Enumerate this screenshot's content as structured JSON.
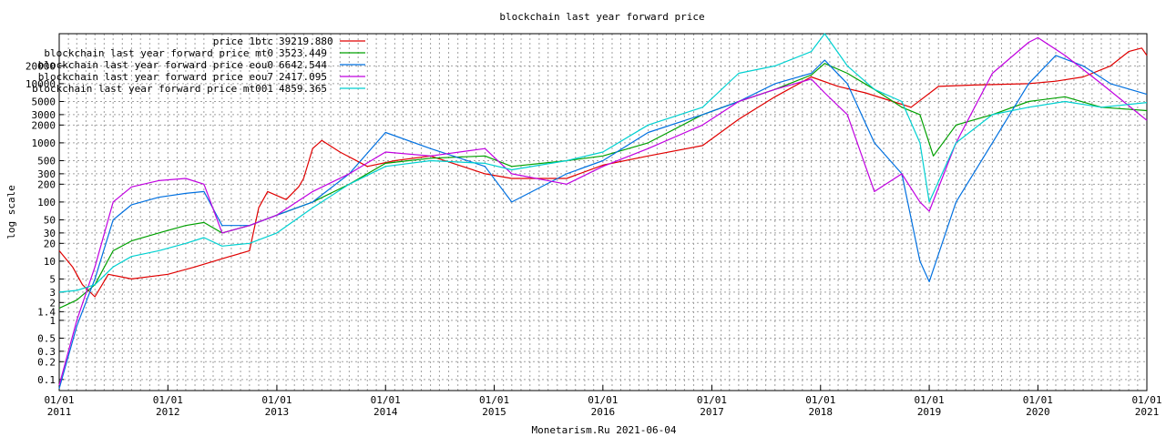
{
  "chart_data": {
    "type": "line",
    "title": "blockchain last year forward price",
    "ylabel": "log scale",
    "xlabel": "",
    "footer": "Monetarism.Ru 2021-06-04",
    "y_scale": "log",
    "grid": true,
    "legend_placement": "top-left",
    "xlim": [
      "2011-01-01",
      "2021-01-01"
    ],
    "ylim": [
      0.065,
      70000
    ],
    "y_ticks": [
      {
        "v": 0.1,
        "label": "0.1"
      },
      {
        "v": 0.2,
        "label": "0.2"
      },
      {
        "v": 0.3,
        "label": "0.3"
      },
      {
        "v": 0.5,
        "label": "0.5"
      },
      {
        "v": 1,
        "label": "1"
      },
      {
        "v": 1.4,
        "label": "1.4"
      },
      {
        "v": 2,
        "label": "2"
      },
      {
        "v": 3,
        "label": "3"
      },
      {
        "v": 5,
        "label": "5"
      },
      {
        "v": 10,
        "label": "10"
      },
      {
        "v": 20,
        "label": "20"
      },
      {
        "v": 30,
        "label": "30"
      },
      {
        "v": 50,
        "label": "50"
      },
      {
        "v": 100,
        "label": "100"
      },
      {
        "v": 200,
        "label": "200"
      },
      {
        "v": 300,
        "label": "300"
      },
      {
        "v": 500,
        "label": "500"
      },
      {
        "v": 1000,
        "label": "1000"
      },
      {
        "v": 2000,
        "label": "2000"
      },
      {
        "v": 3000,
        "label": "3000"
      },
      {
        "v": 5000,
        "label": "5000"
      },
      {
        "v": 10000,
        "label": "10000"
      },
      {
        "v": 20000,
        "label": "20000"
      }
    ],
    "x_ticks": [
      {
        "date": "2011-01-01",
        "line1": "01/01",
        "line2": "2011"
      },
      {
        "date": "2012-01-01",
        "line1": "01/01",
        "line2": "2012"
      },
      {
        "date": "2013-01-01",
        "line1": "01/01",
        "line2": "2013"
      },
      {
        "date": "2014-01-01",
        "line1": "01/01",
        "line2": "2014"
      },
      {
        "date": "2015-01-01",
        "line1": "01/01",
        "line2": "2015"
      },
      {
        "date": "2016-01-01",
        "line1": "01/01",
        "line2": "2016"
      },
      {
        "date": "2017-01-01",
        "line1": "01/01",
        "line2": "2017"
      },
      {
        "date": "2018-01-01",
        "line1": "01/01",
        "line2": "2018"
      },
      {
        "date": "2019-01-01",
        "line1": "01/01",
        "line2": "2019"
      },
      {
        "date": "2020-01-01",
        "line1": "01/01",
        "line2": "2020"
      },
      {
        "date": "2021-01-01",
        "line1": "01/01",
        "line2": "2021"
      }
    ],
    "series": [
      {
        "name": "price 1btc",
        "legend_value": "39219.880",
        "color": "#e00000",
        "points": [
          [
            "2011-01-01",
            15
          ],
          [
            "2011-02-15",
            8
          ],
          [
            "2011-03-20",
            4
          ],
          [
            "2011-05-01",
            2.5
          ],
          [
            "2011-06-15",
            6
          ],
          [
            "2011-09-01",
            5
          ],
          [
            "2012-01-01",
            6
          ],
          [
            "2012-04-01",
            8
          ],
          [
            "2012-07-01",
            11
          ],
          [
            "2012-10-01",
            15
          ],
          [
            "2012-11-01",
            80
          ],
          [
            "2012-12-01",
            150
          ],
          [
            "2013-02-01",
            110
          ],
          [
            "2013-03-15",
            180
          ],
          [
            "2013-04-01",
            250
          ],
          [
            "2013-05-01",
            800
          ],
          [
            "2013-06-01",
            1100
          ],
          [
            "2013-08-01",
            700
          ],
          [
            "2013-11-01",
            400
          ],
          [
            "2014-02-01",
            500
          ],
          [
            "2014-06-01",
            600
          ],
          [
            "2014-12-01",
            300
          ],
          [
            "2015-03-01",
            250
          ],
          [
            "2015-09-01",
            250
          ],
          [
            "2016-01-01",
            420
          ],
          [
            "2016-06-01",
            600
          ],
          [
            "2016-12-01",
            900
          ],
          [
            "2017-04-01",
            2500
          ],
          [
            "2017-08-01",
            6000
          ],
          [
            "2017-12-01",
            13000
          ],
          [
            "2018-03-01",
            9000
          ],
          [
            "2018-06-01",
            7000
          ],
          [
            "2018-09-01",
            5000
          ],
          [
            "2018-11-01",
            4000
          ],
          [
            "2019-02-01",
            9000
          ],
          [
            "2019-06-01",
            9500
          ],
          [
            "2019-12-01",
            10000
          ],
          [
            "2020-03-01",
            11000
          ],
          [
            "2020-06-01",
            13000
          ],
          [
            "2020-09-01",
            20000
          ],
          [
            "2020-11-01",
            35000
          ],
          [
            "2020-12-15",
            40000
          ],
          [
            "2021-01-01",
            30000
          ]
        ]
      },
      {
        "name": "blockchain last year forward price mt0",
        "legend_value": "3523.449",
        "color": "#00a000",
        "points": [
          [
            "2011-01-01",
            1.6
          ],
          [
            "2011-03-01",
            2.2
          ],
          [
            "2011-05-01",
            4
          ],
          [
            "2011-07-01",
            15
          ],
          [
            "2011-09-01",
            22
          ],
          [
            "2011-12-01",
            30
          ],
          [
            "2012-03-01",
            40
          ],
          [
            "2012-05-01",
            45
          ],
          [
            "2012-07-01",
            30
          ],
          [
            "2012-10-01",
            40
          ],
          [
            "2013-01-01",
            60
          ],
          [
            "2013-05-01",
            100
          ],
          [
            "2013-09-01",
            200
          ],
          [
            "2014-01-01",
            450
          ],
          [
            "2014-06-01",
            550
          ],
          [
            "2014-12-01",
            600
          ],
          [
            "2015-03-01",
            400
          ],
          [
            "2015-09-01",
            500
          ],
          [
            "2016-01-01",
            600
          ],
          [
            "2016-06-01",
            1000
          ],
          [
            "2016-12-01",
            3000
          ],
          [
            "2017-04-01",
            5000
          ],
          [
            "2017-08-01",
            8000
          ],
          [
            "2017-12-01",
            14000
          ],
          [
            "2018-01-15",
            22000
          ],
          [
            "2018-04-01",
            15000
          ],
          [
            "2018-07-01",
            8000
          ],
          [
            "2018-10-01",
            4000
          ],
          [
            "2018-12-01",
            3000
          ],
          [
            "2019-01-15",
            600
          ],
          [
            "2019-04-01",
            2000
          ],
          [
            "2019-08-01",
            3000
          ],
          [
            "2019-12-01",
            5000
          ],
          [
            "2020-04-01",
            6000
          ],
          [
            "2020-08-01",
            4000
          ],
          [
            "2021-01-01",
            3500
          ]
        ]
      },
      {
        "name": "blockchain last year forward price eou0",
        "legend_value": "6642.544",
        "color": "#0070e0",
        "points": [
          [
            "2011-01-01",
            0.07
          ],
          [
            "2011-03-01",
            0.8
          ],
          [
            "2011-05-01",
            5
          ],
          [
            "2011-07-01",
            50
          ],
          [
            "2011-09-01",
            90
          ],
          [
            "2011-12-01",
            120
          ],
          [
            "2012-03-01",
            140
          ],
          [
            "2012-05-01",
            150
          ],
          [
            "2012-07-01",
            40
          ],
          [
            "2012-10-01",
            40
          ],
          [
            "2013-01-01",
            60
          ],
          [
            "2013-05-01",
            100
          ],
          [
            "2013-09-01",
            300
          ],
          [
            "2014-01-01",
            1500
          ],
          [
            "2014-06-01",
            800
          ],
          [
            "2014-12-01",
            400
          ],
          [
            "2015-03-01",
            100
          ],
          [
            "2015-09-01",
            300
          ],
          [
            "2016-01-01",
            500
          ],
          [
            "2016-06-01",
            1500
          ],
          [
            "2016-12-01",
            3000
          ],
          [
            "2017-04-01",
            5000
          ],
          [
            "2017-08-01",
            10000
          ],
          [
            "2017-12-01",
            15000
          ],
          [
            "2018-01-15",
            25000
          ],
          [
            "2018-04-01",
            10000
          ],
          [
            "2018-07-01",
            1000
          ],
          [
            "2018-10-01",
            300
          ],
          [
            "2018-12-01",
            10
          ],
          [
            "2019-01-01",
            4.5
          ],
          [
            "2019-04-01",
            100
          ],
          [
            "2019-08-01",
            1000
          ],
          [
            "2019-12-01",
            10000
          ],
          [
            "2020-03-01",
            30000
          ],
          [
            "2020-06-01",
            20000
          ],
          [
            "2020-09-01",
            10000
          ],
          [
            "2021-01-01",
            6600
          ]
        ]
      },
      {
        "name": "blockchain last year forward price eou7",
        "legend_value": "2417.095",
        "color": "#c000e0",
        "points": [
          [
            "2011-01-01",
            0.08
          ],
          [
            "2011-03-01",
            1
          ],
          [
            "2011-05-01",
            8
          ],
          [
            "2011-07-01",
            100
          ],
          [
            "2011-09-01",
            180
          ],
          [
            "2011-12-01",
            230
          ],
          [
            "2012-03-01",
            250
          ],
          [
            "2012-05-01",
            200
          ],
          [
            "2012-07-01",
            30
          ],
          [
            "2012-10-01",
            40
          ],
          [
            "2013-01-01",
            60
          ],
          [
            "2013-05-01",
            150
          ],
          [
            "2013-09-01",
            300
          ],
          [
            "2014-01-01",
            700
          ],
          [
            "2014-06-01",
            600
          ],
          [
            "2014-12-01",
            800
          ],
          [
            "2015-03-01",
            300
          ],
          [
            "2015-09-01",
            200
          ],
          [
            "2016-01-01",
            400
          ],
          [
            "2016-06-01",
            800
          ],
          [
            "2016-12-01",
            2000
          ],
          [
            "2017-04-01",
            5000
          ],
          [
            "2017-08-01",
            8000
          ],
          [
            "2017-12-01",
            12000
          ],
          [
            "2018-01-15",
            7000
          ],
          [
            "2018-04-01",
            3000
          ],
          [
            "2018-07-01",
            150
          ],
          [
            "2018-10-01",
            300
          ],
          [
            "2018-12-01",
            100
          ],
          [
            "2019-01-01",
            70
          ],
          [
            "2019-04-01",
            1000
          ],
          [
            "2019-08-01",
            15000
          ],
          [
            "2019-12-01",
            50000
          ],
          [
            "2020-01-01",
            60000
          ],
          [
            "2020-04-01",
            30000
          ],
          [
            "2020-08-01",
            10000
          ],
          [
            "2021-01-01",
            2400
          ]
        ]
      },
      {
        "name": "blockchain last year forward price mt001",
        "legend_value": "4859.365",
        "color": "#00d0d0",
        "points": [
          [
            "2011-01-01",
            3
          ],
          [
            "2011-03-01",
            3.2
          ],
          [
            "2011-05-01",
            4
          ],
          [
            "2011-07-01",
            8
          ],
          [
            "2011-09-01",
            12
          ],
          [
            "2011-12-01",
            15
          ],
          [
            "2012-03-01",
            20
          ],
          [
            "2012-05-01",
            25
          ],
          [
            "2012-07-01",
            18
          ],
          [
            "2012-10-01",
            20
          ],
          [
            "2013-01-01",
            30
          ],
          [
            "2013-05-01",
            80
          ],
          [
            "2013-09-01",
            200
          ],
          [
            "2014-01-01",
            400
          ],
          [
            "2014-06-01",
            500
          ],
          [
            "2014-12-01",
            450
          ],
          [
            "2015-03-01",
            350
          ],
          [
            "2015-09-01",
            500
          ],
          [
            "2016-01-01",
            700
          ],
          [
            "2016-06-01",
            2000
          ],
          [
            "2016-12-01",
            4000
          ],
          [
            "2017-04-01",
            15000
          ],
          [
            "2017-08-01",
            20000
          ],
          [
            "2017-12-01",
            35000
          ],
          [
            "2018-01-15",
            70000
          ],
          [
            "2018-04-01",
            20000
          ],
          [
            "2018-07-01",
            8000
          ],
          [
            "2018-10-01",
            5000
          ],
          [
            "2018-12-01",
            1000
          ],
          [
            "2019-01-01",
            100
          ],
          [
            "2019-04-01",
            1000
          ],
          [
            "2019-08-01",
            3000
          ],
          [
            "2019-12-01",
            4000
          ],
          [
            "2020-04-01",
            5000
          ],
          [
            "2020-08-01",
            4000
          ],
          [
            "2021-01-01",
            4800
          ]
        ]
      }
    ]
  }
}
